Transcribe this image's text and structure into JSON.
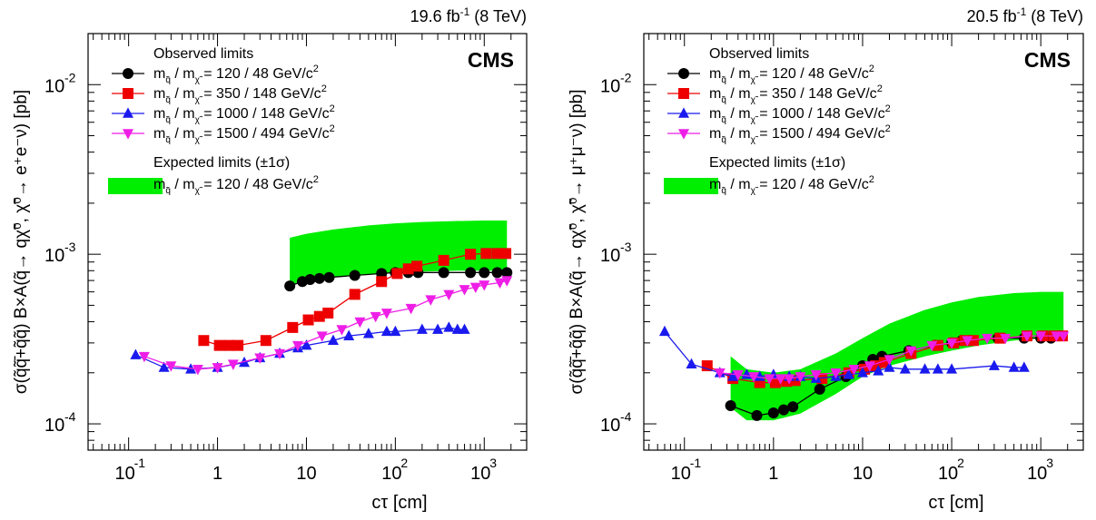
{
  "chart_data": [
    {
      "type": "scatter",
      "panel": "left",
      "lumi_label": "19.6 fb",
      "lumi_exp": "-1",
      "energy_label": "(8 TeV)",
      "experiment": "CMS",
      "xlabel": "cτ [cm]",
      "ylabel": "σ(q̃q̃̄+q̃q̃) B×A(q̃→ qχ̃⁰, χ̃⁰→ e⁺e⁻ν) [pb]",
      "x_scale": "log",
      "y_scale": "log",
      "xlim": [
        0.035,
        3000
      ],
      "ylim": [
        7e-05,
        0.02
      ],
      "x_ticks": [
        {
          "v": 0.1,
          "m": "10",
          "e": "-1"
        },
        {
          "v": 1,
          "m": "1",
          "e": ""
        },
        {
          "v": 10,
          "m": "10",
          "e": ""
        },
        {
          "v": 100,
          "m": "10",
          "e": "2"
        },
        {
          "v": 1000,
          "m": "10",
          "e": "3"
        }
      ],
      "y_ticks": [
        {
          "v": 0.0001,
          "m": "10",
          "e": "-4"
        },
        {
          "v": 0.001,
          "m": "10",
          "e": "-3"
        },
        {
          "v": 0.01,
          "m": "10",
          "e": "-2"
        }
      ],
      "legend_title_observed": "Observed limits",
      "legend_title_expected": "Expected limits (±1σ)",
      "series": [
        {
          "name": "m / m = 120 / 48 GeV/c",
          "masses": "= 120 / 48 GeV/c",
          "color": "#000000",
          "marker": "circle",
          "x": [
            6.5,
            9,
            11,
            14,
            18,
            35,
            70,
            100,
            140,
            180,
            350,
            700,
            1000,
            1400,
            1800
          ],
          "y": [
            0.00065,
            0.00069,
            0.00071,
            0.00072,
            0.00073,
            0.00075,
            0.00077,
            0.00078,
            0.00078,
            0.00078,
            0.00078,
            0.00078,
            0.00078,
            0.00078,
            0.00078
          ]
        },
        {
          "name": "m / m = 350 / 148 GeV/c",
          "masses": "= 350 / 148 GeV/c",
          "color": "#ee0000",
          "marker": "square",
          "x": [
            0.7,
            1.05,
            1.35,
            1.7,
            3.5,
            7,
            10.5,
            14,
            17.5,
            35,
            70,
            105,
            140,
            175,
            350,
            700,
            1050,
            1400,
            1750
          ],
          "y": [
            0.00031,
            0.00029,
            0.00029,
            0.00029,
            0.00031,
            0.00037,
            0.00041,
            0.00043,
            0.00045,
            0.00058,
            0.00069,
            0.00077,
            0.00082,
            0.00085,
            0.00092,
            0.001,
            0.00101,
            0.00101,
            0.00101
          ]
        },
        {
          "name": "m / m = 1000 / 148 GeV/c",
          "masses": "= 1000 / 148 GeV/c",
          "color": "#1a1aee",
          "marker": "triangle",
          "x": [
            0.12,
            0.25,
            0.5,
            1,
            2,
            3,
            5,
            8,
            10,
            20,
            30,
            50,
            80,
            100,
            200,
            300,
            400,
            500,
            600
          ],
          "y": [
            0.000255,
            0.000215,
            0.00021,
            0.000215,
            0.00023,
            0.000245,
            0.00026,
            0.00028,
            0.00029,
            0.00031,
            0.00033,
            0.00034,
            0.00035,
            0.00035,
            0.00036,
            0.00036,
            0.00037,
            0.00036,
            0.00036
          ]
        },
        {
          "name": "m / m = 1500 / 494 GeV/c",
          "masses": "= 1500 / 494 GeV/c",
          "color": "#ee1ee6",
          "marker": "triangle-down",
          "x": [
            0.15,
            0.3,
            0.6,
            1,
            1.5,
            3,
            5,
            8,
            15,
            25,
            40,
            60,
            80,
            150,
            250,
            400,
            600,
            800,
            1000,
            1500,
            1800
          ],
          "y": [
            0.00025,
            0.00022,
            0.00021,
            0.000215,
            0.000225,
            0.000245,
            0.00026,
            0.00029,
            0.00033,
            0.00036,
            0.0004,
            0.00043,
            0.00045,
            0.00048,
            0.00054,
            0.00058,
            0.00062,
            0.00064,
            0.00066,
            0.00068,
            0.0007
          ]
        }
      ],
      "expected": {
        "name": "m / m = 120 / 48 GeV/c",
        "masses": "= 120 / 48 GeV/c",
        "color": "#00ee00",
        "x": [
          6.5,
          10,
          20,
          50,
          100,
          200,
          500,
          1000,
          1800
        ],
        "upper": [
          0.00125,
          0.00132,
          0.0014,
          0.00148,
          0.00152,
          0.00155,
          0.00157,
          0.00158,
          0.00158
        ],
        "lower": [
          0.00066,
          0.0007,
          0.00073,
          0.00076,
          0.00078,
          0.00079,
          0.0008,
          0.0008,
          0.0008
        ]
      }
    },
    {
      "type": "scatter",
      "panel": "right",
      "lumi_label": "20.5 fb",
      "lumi_exp": "-1",
      "energy_label": "(8 TeV)",
      "experiment": "CMS",
      "xlabel": "cτ [cm]",
      "ylabel": "σ(q̃q̃̄+q̃q̃) B×A(q̃→ qχ̃⁰, χ̃⁰→ μ⁺μ⁻ν) [pb]",
      "x_scale": "log",
      "y_scale": "log",
      "xlim": [
        0.035,
        3000
      ],
      "ylim": [
        7e-05,
        0.02
      ],
      "x_ticks": [
        {
          "v": 0.1,
          "m": "10",
          "e": "-1"
        },
        {
          "v": 1,
          "m": "1",
          "e": ""
        },
        {
          "v": 10,
          "m": "10",
          "e": ""
        },
        {
          "v": 100,
          "m": "10",
          "e": "2"
        },
        {
          "v": 1000,
          "m": "10",
          "e": "3"
        }
      ],
      "y_ticks": [
        {
          "v": 0.0001,
          "m": "10",
          "e": "-4"
        },
        {
          "v": 0.001,
          "m": "10",
          "e": "-3"
        },
        {
          "v": 0.01,
          "m": "10",
          "e": "-2"
        }
      ],
      "legend_title_observed": "Observed limits",
      "legend_title_expected": "Expected limits (±1σ)",
      "series": [
        {
          "name": "m / m = 120 / 48 GeV/c",
          "masses": "= 120 / 48 GeV/c",
          "color": "#000000",
          "marker": "circle",
          "x": [
            0.33,
            0.65,
            1,
            1.3,
            1.65,
            3.3,
            6.5,
            10,
            13,
            16.5,
            33,
            65,
            100,
            130,
            165,
            330,
            650,
            1000,
            1300,
            1650
          ],
          "y": [
            0.000128,
            0.000112,
            0.000116,
            0.000121,
            0.000126,
            0.00016,
            0.00019,
            0.00022,
            0.00024,
            0.00025,
            0.00027,
            0.00029,
            0.0003,
            0.00031,
            0.00031,
            0.00032,
            0.00032,
            0.00032,
            0.00032,
            0.00033
          ]
        },
        {
          "name": "m / m = 350 / 148 GeV/c",
          "masses": "= 350 / 148 GeV/c",
          "color": "#ee0000",
          "marker": "square",
          "x": [
            0.18,
            0.35,
            0.7,
            1.05,
            1.4,
            1.75,
            3.5,
            7,
            10.5,
            14,
            17.5,
            35,
            70,
            105,
            140,
            175,
            350,
            700,
            1050,
            1400,
            1750
          ],
          "y": [
            0.00022,
            0.000185,
            0.000175,
            0.000175,
            0.000178,
            0.00018,
            0.000185,
            0.0002,
            0.00021,
            0.00022,
            0.00023,
            0.00026,
            0.00029,
            0.0003,
            0.00031,
            0.00031,
            0.00032,
            0.00033,
            0.00033,
            0.00033,
            0.00033
          ]
        },
        {
          "name": "m / m = 1000 / 148 GeV/c",
          "masses": "= 1000 / 148 GeV/c",
          "color": "#1a1aee",
          "marker": "triangle",
          "x": [
            0.06,
            0.12,
            0.25,
            0.35,
            0.5,
            0.7,
            1,
            1.5,
            2,
            3,
            5,
            7,
            10,
            15,
            20,
            30,
            50,
            70,
            100,
            300,
            500,
            650
          ],
          "y": [
            0.00035,
            0.000225,
            0.0002,
            0.00019,
            0.000195,
            0.00019,
            0.000195,
            0.00019,
            0.00019,
            0.000185,
            0.00019,
            0.000195,
            0.0002,
            0.000205,
            0.000215,
            0.00021,
            0.00021,
            0.00021,
            0.00021,
            0.00022,
            0.000215,
            0.000215
          ]
        },
        {
          "name": "m / m = 1500 / 494 GeV/c",
          "masses": "= 1500 / 494 GeV/c",
          "color": "#ee1ee6",
          "marker": "triangle-down",
          "x": [
            0.25,
            0.4,
            0.6,
            0.9,
            1.2,
            1.5,
            2,
            3,
            5,
            8,
            12,
            20,
            35,
            60,
            100,
            150,
            250,
            400,
            700,
            1000,
            1500,
            1800
          ],
          "y": [
            0.0002,
            0.000195,
            0.00019,
            0.000185,
            0.000185,
            0.000185,
            0.00019,
            0.000195,
            0.0002,
            0.00021,
            0.00022,
            0.00024,
            0.00027,
            0.00029,
            0.0003,
            0.00031,
            0.00032,
            0.00032,
            0.00033,
            0.00033,
            0.00033,
            0.00033
          ]
        }
      ],
      "expected": {
        "name": "m / m = 120 / 48 GeV/c",
        "masses": "= 120 / 48 GeV/c",
        "color": "#00ee00",
        "x": [
          0.33,
          0.5,
          1,
          2,
          5,
          10,
          20,
          50,
          100,
          200,
          500,
          1000,
          1800
        ],
        "upper": [
          0.00025,
          0.00021,
          0.0002,
          0.00021,
          0.00026,
          0.00032,
          0.00039,
          0.00047,
          0.00052,
          0.00056,
          0.00059,
          0.0006,
          0.0006
        ],
        "lower": [
          0.000125,
          0.000105,
          0.000105,
          0.000115,
          0.00015,
          0.00019,
          0.00022,
          0.00025,
          0.00027,
          0.00029,
          0.00031,
          0.00032,
          0.00032
        ]
      }
    }
  ]
}
